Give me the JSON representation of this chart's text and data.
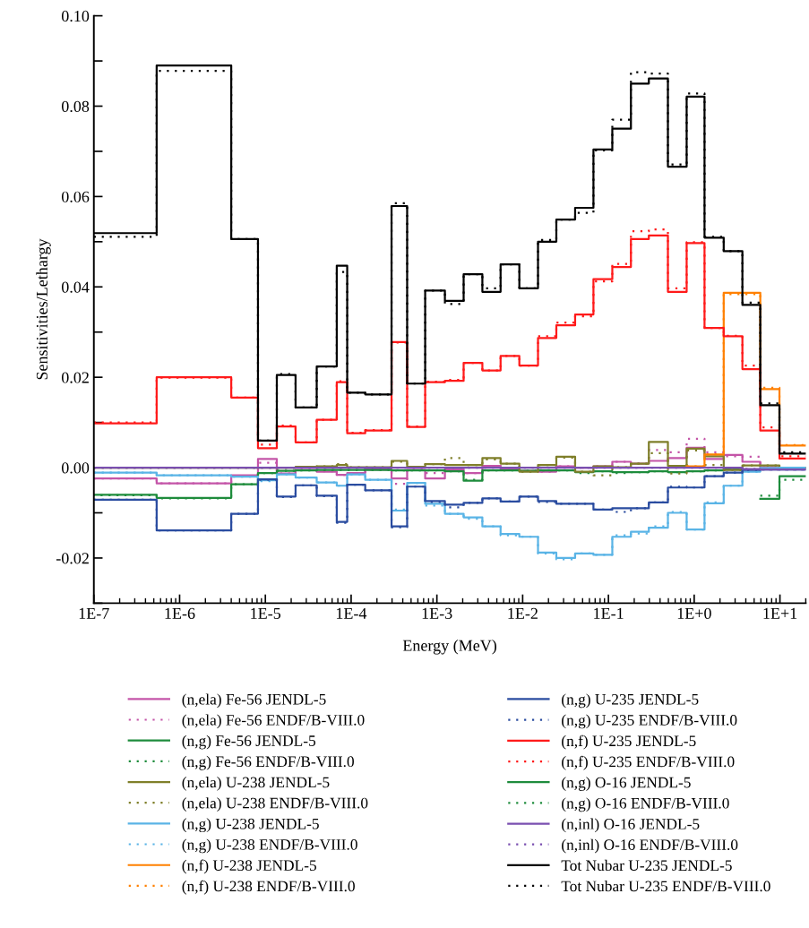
{
  "chart_data": {
    "type": "step",
    "xlabel": "Energy (MeV)",
    "ylabel": "Sensitivities/Lethargy",
    "log": "x",
    "grid": false,
    "legend": "bottom",
    "xlim": [
      1e-07,
      20
    ],
    "ylim": [
      -0.03,
      0.1
    ],
    "xticks": [
      {
        "value": 1e-07,
        "label": "1E-7"
      },
      {
        "value": 1e-06,
        "label": "1E-6"
      },
      {
        "value": 1e-05,
        "label": "1E-5"
      },
      {
        "value": 0.0001,
        "label": "1E-4"
      },
      {
        "value": 0.001,
        "label": "1E-3"
      },
      {
        "value": 0.01,
        "label": "1E-2"
      },
      {
        "value": 0.1,
        "label": "1E-1"
      },
      {
        "value": 1,
        "label": "1E+0"
      },
      {
        "value": 10,
        "label": "1E+1"
      }
    ],
    "yticks": [
      {
        "value": -0.03,
        "label": null
      },
      {
        "value": -0.02,
        "label": "-0.02"
      },
      {
        "value": -0.01,
        "label": null
      },
      {
        "value": 0,
        "label": "0.00"
      },
      {
        "value": 0.01,
        "label": null
      },
      {
        "value": 0.02,
        "label": "0.02"
      },
      {
        "value": 0.03,
        "label": null
      },
      {
        "value": 0.04,
        "label": "0.04"
      },
      {
        "value": 0.05,
        "label": null
      },
      {
        "value": 0.06,
        "label": "0.06"
      },
      {
        "value": 0.07,
        "label": null
      },
      {
        "value": 0.08,
        "label": "0.08"
      },
      {
        "value": 0.09,
        "label": null
      },
      {
        "value": 0.1,
        "label": "0.10"
      }
    ],
    "x": [
      1e-07,
      5.4e-07,
      4e-06,
      8.2e-06,
      1.36e-05,
      2.25e-05,
      3.97e-05,
      6.8e-05,
      9e-05,
      0.000146,
      0.000296,
      0.00045,
      0.00073,
      0.00124,
      0.00205,
      0.00339,
      0.00553,
      0.00915,
      0.0151,
      0.0247,
      0.0409,
      0.0669,
      0.111,
      0.183,
      0.296,
      0.494,
      0.817,
      1.32,
      2.21,
      3.65,
      5.9,
      9.87,
      20
    ],
    "series": [
      {
        "name": "(n,ela) Fe-56 JENDL-5",
        "color": "#c455a8",
        "line_style": "solid",
        "values": [
          -0.0024,
          -0.0035,
          -0.0017,
          0.0019,
          -0.0013,
          -0.0005,
          -0.0009,
          -0.0016,
          -0.0012,
          -0.0004,
          -0.0024,
          -0.0005,
          -0.0024,
          -0.0004,
          -0.0012,
          0.0004,
          -0.0003,
          -0.0007,
          -0.0009,
          0.0003,
          0.0,
          0.0003,
          0.0013,
          0.0009,
          0.0015,
          0.0021,
          0.0044,
          0.0019,
          0.0028,
          0.0013,
          0.0001,
          0.0,
          0.0
        ]
      },
      {
        "name": "(n,ela) Fe-56 ENDF/B-VIII.0",
        "color": "#c455a8",
        "line_style": "dotted",
        "values": [
          -0.0024,
          -0.0035,
          -0.0018,
          0.0011,
          -0.0013,
          -0.0005,
          -0.0008,
          -0.0016,
          -0.0012,
          -0.0004,
          -0.0036,
          -0.0005,
          -0.0012,
          -0.0004,
          -0.0012,
          0.0004,
          -0.0003,
          -0.0007,
          -0.0009,
          0.0003,
          0.0,
          0.0003,
          0.0013,
          0.0009,
          0.0039,
          0.0034,
          0.0064,
          0.0034,
          0.0025,
          0.0024,
          0.0001,
          0.0,
          0.0
        ]
      },
      {
        "name": "(n,g) Fe-56 JENDL-5",
        "color": "#1e8c3c",
        "line_style": "solid",
        "values": [
          -0.006,
          -0.0067,
          -0.0037,
          -0.0012,
          -0.0007,
          -0.0006,
          -0.0005,
          -0.0005,
          -0.0005,
          -0.0005,
          -0.0006,
          -0.0006,
          -0.0006,
          -0.0008,
          -0.0029,
          -0.0006,
          -0.0006,
          -0.0007,
          -0.0006,
          -0.0006,
          -0.001,
          -0.0008,
          -0.001,
          -0.001,
          -0.0008,
          -0.001,
          -0.0008,
          -0.0006,
          -0.0004,
          -0.0003,
          null,
          null,
          null
        ]
      },
      {
        "name": "(n,g) Fe-56 ENDF/B-VIII.0",
        "color": "#1e8c3c",
        "line_style": "dotted",
        "values": [
          -0.0061,
          -0.0068,
          -0.0037,
          -0.0012,
          -0.0007,
          -0.0006,
          -0.0005,
          -0.0005,
          -0.0005,
          -0.0005,
          -0.0006,
          -0.0006,
          -0.0006,
          -0.0008,
          -0.0027,
          -0.0006,
          -0.0006,
          -0.0007,
          -0.0006,
          -0.0006,
          -0.0012,
          -0.0008,
          -0.0012,
          -0.001,
          -0.0008,
          -0.001,
          -0.0008,
          -0.0006,
          -0.0004,
          null,
          null,
          null,
          null
        ]
      },
      {
        "name": "(n,ela) U-238 JENDL-5",
        "color": "#7f7f2a",
        "line_style": "solid",
        "values": [
          0.0,
          0.0,
          0.0,
          0.0,
          0.0,
          0.0002,
          0.0003,
          0.0006,
          0.0001,
          0.0001,
          0.0015,
          0.0002,
          0.0008,
          0.0006,
          0.0006,
          0.0021,
          0.0009,
          -0.0009,
          0.0006,
          0.0024,
          -0.0009,
          0.0003,
          0.0001,
          0.0009,
          0.0057,
          0.0004,
          0.0042,
          0.0025,
          -0.0005,
          0.0005,
          0.0005,
          0.0,
          0.0
        ]
      },
      {
        "name": "(n,ela) U-238 ENDF/B-VIII.0",
        "color": "#7f7f2a",
        "line_style": "dotted",
        "values": [
          0.0,
          0.0,
          0.0,
          0.0,
          0.0,
          0.0002,
          0.0003,
          0.0008,
          0.0001,
          0.0001,
          0.0013,
          0.0002,
          0.0008,
          0.0021,
          0.0006,
          0.0018,
          0.0009,
          -0.0009,
          0.0006,
          0.0022,
          -0.0009,
          -0.0017,
          0.0001,
          0.0009,
          0.0032,
          -0.0013,
          0.0038,
          0.0006,
          -0.0005,
          0.0005,
          0.0005,
          0.0,
          0.0
        ]
      },
      {
        "name": "(n,g) U-238 JENDL-5",
        "color": "#5ab4e6",
        "line_style": "solid",
        "values": [
          -0.0011,
          -0.0017,
          -0.002,
          -0.0028,
          -0.0015,
          -0.0022,
          -0.0033,
          -0.004,
          -0.0015,
          -0.0027,
          -0.0095,
          -0.0034,
          -0.008,
          -0.0102,
          -0.011,
          -0.013,
          -0.0147,
          -0.0153,
          -0.0188,
          -0.02,
          -0.019,
          -0.0193,
          -0.0153,
          -0.0142,
          -0.0133,
          -0.01,
          -0.0137,
          -0.0079,
          -0.004,
          -0.0009,
          -0.0001,
          0.0,
          0.0
        ]
      },
      {
        "name": "(n,g) U-238 ENDF/B-VIII.0",
        "color": "#5ab4e6",
        "line_style": "dotted",
        "values": [
          -0.0011,
          -0.0017,
          -0.002,
          -0.003,
          -0.0015,
          -0.0022,
          -0.0033,
          -0.004,
          -0.0015,
          -0.0027,
          -0.0093,
          -0.0034,
          -0.0084,
          -0.0102,
          -0.0113,
          -0.013,
          -0.015,
          -0.0153,
          -0.019,
          -0.0203,
          -0.019,
          -0.0193,
          -0.015,
          -0.0146,
          -0.013,
          -0.0098,
          -0.0137,
          -0.0077,
          -0.004,
          -0.0009,
          -0.0001,
          0.0,
          0.0
        ]
      },
      {
        "name": "(n,f) U-238 JENDL-5",
        "color": "#ff8000",
        "line_style": "solid",
        "values": [
          null,
          null,
          null,
          null,
          null,
          null,
          null,
          null,
          null,
          null,
          null,
          null,
          null,
          null,
          null,
          null,
          null,
          null,
          null,
          null,
          null,
          null,
          null,
          null,
          null,
          null,
          0.0003,
          0.0029,
          0.0387,
          0.0387,
          0.0174,
          0.0049,
          0.0049
        ]
      },
      {
        "name": "(n,f) U-238 ENDF/B-VIII.0",
        "color": "#ff8000",
        "line_style": "dotted",
        "values": [
          null,
          null,
          null,
          null,
          null,
          null,
          null,
          null,
          null,
          null,
          null,
          null,
          null,
          null,
          null,
          null,
          null,
          null,
          null,
          null,
          null,
          null,
          null,
          null,
          null,
          null,
          0.0003,
          0.0029,
          0.0384,
          0.0384,
          0.0177,
          0.005,
          0.005
        ]
      },
      {
        "name": "(n,g) U-235 JENDL-5",
        "color": "#2a4ca0",
        "line_style": "solid",
        "values": [
          -0.0071,
          -0.0139,
          -0.0102,
          -0.0026,
          -0.0064,
          -0.0039,
          -0.0062,
          -0.012,
          -0.0038,
          -0.005,
          -0.013,
          -0.0042,
          -0.0074,
          -0.0082,
          -0.0078,
          -0.0068,
          -0.0075,
          -0.0064,
          -0.0074,
          -0.008,
          -0.008,
          -0.0093,
          -0.009,
          -0.009,
          -0.0077,
          -0.0044,
          -0.0044,
          -0.0019,
          -0.0011,
          -0.0005,
          -0.0004,
          -0.0004,
          -0.0004
        ]
      },
      {
        "name": "(n,g) U-235 ENDF/B-VIII.0",
        "color": "#2a4ca0",
        "line_style": "dotted",
        "values": [
          -0.0071,
          -0.0139,
          -0.0102,
          -0.0027,
          -0.0065,
          -0.0039,
          -0.0063,
          -0.0122,
          -0.0038,
          -0.005,
          -0.0132,
          -0.0042,
          -0.0076,
          -0.0088,
          -0.0078,
          -0.0068,
          -0.0075,
          -0.0064,
          -0.0076,
          -0.008,
          -0.008,
          -0.0093,
          -0.0098,
          -0.009,
          -0.0077,
          -0.0042,
          -0.0044,
          -0.0019,
          -0.0011,
          -0.0005,
          -0.0004,
          -0.0004,
          -0.0004
        ]
      },
      {
        "name": "(n,f) U-235 JENDL-5",
        "color": "#ff1a1a",
        "line_style": "solid",
        "values": [
          0.0098,
          0.02,
          0.0155,
          0.0043,
          0.0091,
          0.0056,
          0.0106,
          0.0189,
          0.0076,
          0.0082,
          0.0278,
          0.009,
          0.0189,
          0.0192,
          0.0232,
          0.0215,
          0.0247,
          0.0226,
          0.0287,
          0.0315,
          0.0339,
          0.0417,
          0.0444,
          0.0506,
          0.0514,
          0.0389,
          0.0497,
          0.0309,
          0.0291,
          0.0218,
          0.0082,
          0.002,
          0.002
        ]
      },
      {
        "name": "(n,f) U-235 ENDF/B-VIII.0",
        "color": "#ff1a1a",
        "line_style": "dotted",
        "values": [
          0.01,
          0.0199,
          0.0155,
          0.0051,
          0.0093,
          0.0056,
          0.0106,
          0.0191,
          0.0077,
          0.0083,
          0.0277,
          0.0091,
          0.019,
          0.0194,
          0.0232,
          0.0215,
          0.0247,
          0.0226,
          0.0291,
          0.0321,
          0.0335,
          0.0412,
          0.0451,
          0.0523,
          0.0527,
          0.0397,
          0.0499,
          0.0309,
          0.0292,
          0.0226,
          0.0089,
          0.0025,
          0.0025
        ]
      },
      {
        "name": "(n,g) O-16 JENDL-5",
        "color": "#1e8c3c",
        "line_style": "solid",
        "values": [
          null,
          null,
          null,
          null,
          null,
          null,
          null,
          null,
          null,
          null,
          null,
          null,
          null,
          null,
          null,
          null,
          null,
          null,
          null,
          null,
          null,
          null,
          null,
          null,
          null,
          null,
          null,
          null,
          null,
          null,
          -0.0069,
          -0.0019,
          -0.0019
        ]
      },
      {
        "name": "(n,g) O-16 ENDF/B-VIII.0",
        "color": "#1e8c3c",
        "line_style": "dotted",
        "values": [
          null,
          null,
          null,
          null,
          null,
          null,
          null,
          null,
          null,
          null,
          null,
          null,
          null,
          null,
          null,
          null,
          null,
          null,
          null,
          null,
          null,
          null,
          null,
          null,
          null,
          null,
          null,
          null,
          null,
          null,
          -0.0062,
          -0.0027,
          -0.0027
        ]
      },
      {
        "name": "(n,inl) O-16 JENDL-5",
        "color": "#7a4fb0",
        "line_style": "solid",
        "values": [
          0.0,
          0.0,
          0.0,
          0.0,
          0.0,
          0.0,
          0.0,
          0.0,
          0.0,
          0.0,
          0.0,
          0.0,
          0.0,
          0.0,
          0.0,
          0.0,
          0.0,
          0.0,
          0.0,
          0.0,
          0.0,
          0.0,
          0.0,
          0.0,
          0.0,
          0.0,
          0.0,
          0.0,
          0.0,
          -0.0003,
          -0.0004,
          -0.0004,
          -0.0004
        ]
      },
      {
        "name": "(n,inl) O-16 ENDF/B-VIII.0",
        "color": "#7a4fb0",
        "line_style": "dotted",
        "values": [
          0.0,
          0.0,
          0.0,
          0.0,
          0.0,
          0.0,
          0.0,
          0.0,
          0.0,
          0.0,
          0.0,
          0.0,
          0.0,
          0.0,
          0.0,
          0.0,
          0.0,
          0.0,
          0.0,
          0.0,
          0.0,
          0.0,
          0.0,
          0.0,
          0.0,
          0.0,
          0.0,
          0.0,
          0.0,
          -0.0003,
          -0.0004,
          -0.0004,
          -0.0004
        ]
      },
      {
        "name": "Tot Nubar U-235 JENDL-5",
        "color": "#000000",
        "line_style": "solid",
        "values": [
          0.0519,
          0.089,
          0.0506,
          0.006,
          0.0205,
          0.0133,
          0.0224,
          0.0447,
          0.0166,
          0.0162,
          0.0579,
          0.0186,
          0.0392,
          0.0369,
          0.0428,
          0.0389,
          0.045,
          0.0397,
          0.05,
          0.0549,
          0.0575,
          0.0704,
          0.075,
          0.085,
          0.0861,
          0.0666,
          0.0821,
          0.0509,
          0.0479,
          0.036,
          0.0138,
          0.0031,
          0.0031
        ]
      },
      {
        "name": "Tot Nubar U-235 ENDF/B-VIII.0",
        "color": "#000000",
        "line_style": "dotted",
        "values": [
          0.0511,
          0.0878,
          0.0506,
          0.006,
          0.0207,
          0.0133,
          0.0224,
          0.0433,
          0.0166,
          0.0162,
          0.0585,
          0.0186,
          0.0392,
          0.0362,
          0.0428,
          0.0397,
          0.045,
          0.0397,
          0.0504,
          0.0549,
          0.0564,
          0.0702,
          0.077,
          0.0875,
          0.0872,
          0.0671,
          0.0828,
          0.0511,
          0.0479,
          0.0365,
          0.0142,
          0.0034,
          0.0034
        ]
      }
    ]
  }
}
